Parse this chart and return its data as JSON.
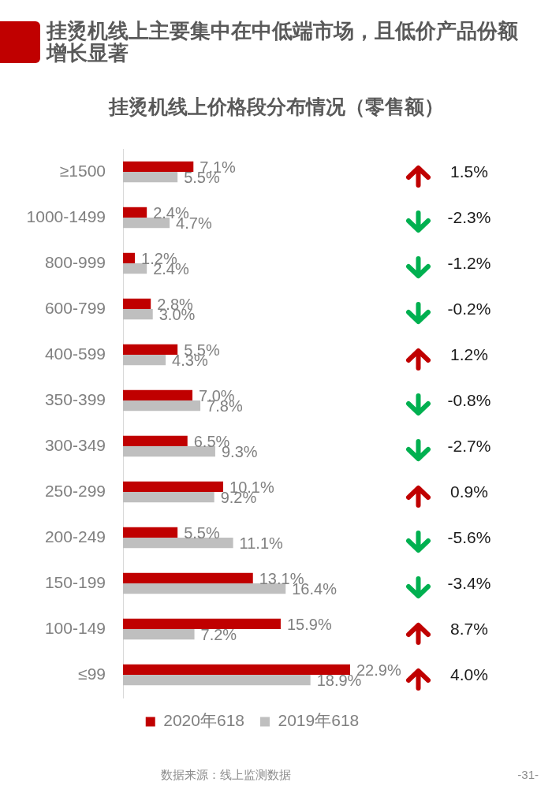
{
  "chart_data": {
    "type": "bar",
    "orientation": "horizontal",
    "title": "挂烫机线上主要集中在中低端市场，且低价产品份额增长显著",
    "subtitle": "挂烫机线上价格段分布情况（零售额）",
    "categories": [
      "≥1500",
      "1000-1499",
      "800-999",
      "600-799",
      "400-599",
      "350-399",
      "300-349",
      "250-299",
      "200-249",
      "150-199",
      "100-149",
      "≤99"
    ],
    "series": [
      {
        "name": "2020年618",
        "color": "#c00000",
        "values": [
          7.1,
          2.4,
          1.2,
          2.8,
          5.5,
          7.0,
          6.5,
          10.1,
          5.5,
          13.1,
          15.9,
          22.9
        ],
        "value_labels": [
          "7.1%",
          "2.4%",
          "1.2%",
          "2.8%",
          "5.5%",
          "7.0%",
          "6.5%",
          "10.1%",
          "5.5%",
          "13.1%",
          "15.9%",
          "22.9%"
        ]
      },
      {
        "name": "2019年618",
        "color": "#bfbfbf",
        "values": [
          5.5,
          4.7,
          2.4,
          3.0,
          4.3,
          7.8,
          9.3,
          9.2,
          11.1,
          16.4,
          7.2,
          18.9
        ],
        "value_labels": [
          "5.5%",
          "4.7%",
          "2.4%",
          "3.0%",
          "4.3%",
          "7.8%",
          "9.3%",
          "9.2%",
          "11.1%",
          "16.4%",
          "7.2%",
          "18.9%"
        ]
      }
    ],
    "annotations": [
      "1.5%",
      "-2.3%",
      "-1.2%",
      "-0.2%",
      "1.2%",
      "-0.8%",
      "-2.7%",
      "0.9%",
      "-5.6%",
      "-3.4%",
      "8.7%",
      "4.0%",
      "数据来源：线上监测数据",
      "-31-"
    ],
    "legend": "bottom"
  }
}
